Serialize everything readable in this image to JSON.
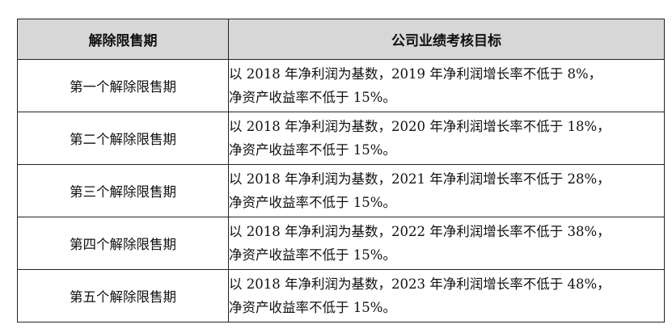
{
  "table": {
    "headers": {
      "period": "解除限售期",
      "target": "公司业绩考核目标"
    },
    "rows": [
      {
        "period": "第一个解除限售期",
        "target_line1": "以 2018 年净利润为基数，2019 年净利润增长率不低于 8%，",
        "target_line2": "净资产收益率不低于 15%。"
      },
      {
        "period": "第二个解除限售期",
        "target_line1": "以 2018 年净利润为基数，2020 年净利润增长率不低于 18%，",
        "target_line2": "净资产收益率不低于 15%。"
      },
      {
        "period": "第三个解除限售期",
        "target_line1": "以 2018 年净利润为基数，2021 年净利润增长率不低于 28%，",
        "target_line2": "净资产收益率不低于 15%。"
      },
      {
        "period": "第四个解除限售期",
        "target_line1": "以 2018 年净利润为基数，2022 年净利润增长率不低于 38%，",
        "target_line2": "净资产收益率不低于 15%。"
      },
      {
        "period": "第五个解除限售期",
        "target_line1": "以 2018 年净利润为基数，2023 年净利润增长率不低于 48%，",
        "target_line2": "净资产收益率不低于 15%。"
      }
    ]
  },
  "colors": {
    "header_background": "#d7d7d7",
    "border": "#222222",
    "text": "#111111"
  }
}
